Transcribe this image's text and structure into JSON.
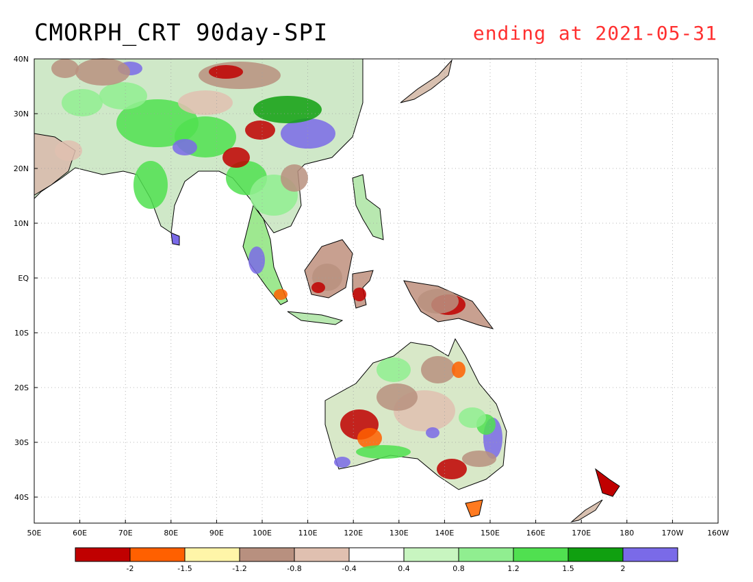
{
  "title": "CMORPH_CRT 90day-SPI",
  "subtitle": "ending at 2021-05-31",
  "colors": {
    "title": "#000000",
    "subtitle": "#ff3030",
    "coastline": "#000000",
    "grid": "#a0a0a0"
  },
  "map": {
    "lat_labels": [
      "40N",
      "30N",
      "20N",
      "10N",
      "EQ",
      "10S",
      "20S",
      "30S",
      "40S"
    ],
    "lon_labels": [
      "50E",
      "60E",
      "70E",
      "80E",
      "90E",
      "100E",
      "110E",
      "120E",
      "130E",
      "140E",
      "150E",
      "160E",
      "170E",
      "180",
      "170W",
      "160W"
    ],
    "grid": "dotted"
  },
  "colorbar": {
    "colors": [
      "#c00000",
      "#ff6000",
      "#fff5a8",
      "#b8907f",
      "#e0c0b0",
      "#ffffff",
      "#c8f5c0",
      "#90ee90",
      "#50e050",
      "#10a010",
      "#7a6ae8"
    ],
    "labels": [
      "-2",
      "-1.5",
      "-1.2",
      "-0.8",
      "-0.4",
      "0.4",
      "0.8",
      "1.2",
      "1.5",
      "2"
    ]
  },
  "legend_categories": {
    "extreme_dry": "#c00000",
    "severe_dry": "#ff6000",
    "moderate_dry": "#fff5a8",
    "mild_dry": "#b8907f",
    "slightly_dry": "#e0c0b0",
    "near_normal": "#ffffff",
    "slightly_wet": "#c8f5c0",
    "mild_wet": "#90ee90",
    "moderate_wet": "#50e050",
    "severe_wet": "#10a010",
    "extreme_wet": "#7a6ae8"
  }
}
